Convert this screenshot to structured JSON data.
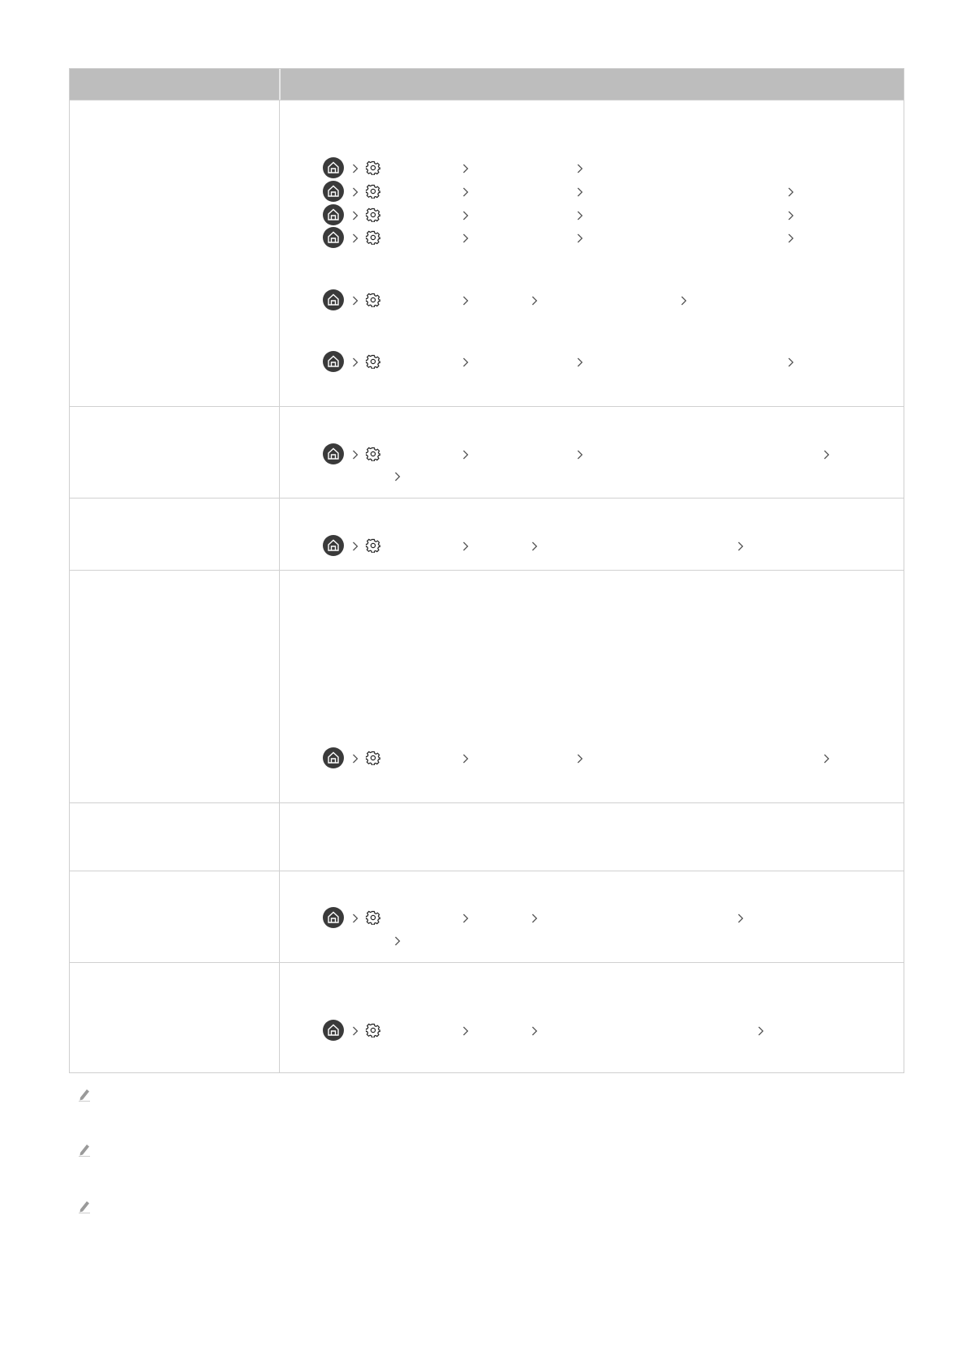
{
  "table": {
    "header_color": "#bdbdbd",
    "border_color": "#d0d0d0",
    "header_cells": [
      "",
      ""
    ],
    "row_count": 7
  },
  "icons": {
    "home": "home-icon",
    "settings": "settings-gear-icon",
    "chevron": "chevron-right-icon",
    "note": "pencil-note-icon"
  },
  "colors": {
    "home_icon_bg": "#3a3a3a",
    "chevron": "#555555",
    "note_icon": "#9a9a9a"
  }
}
